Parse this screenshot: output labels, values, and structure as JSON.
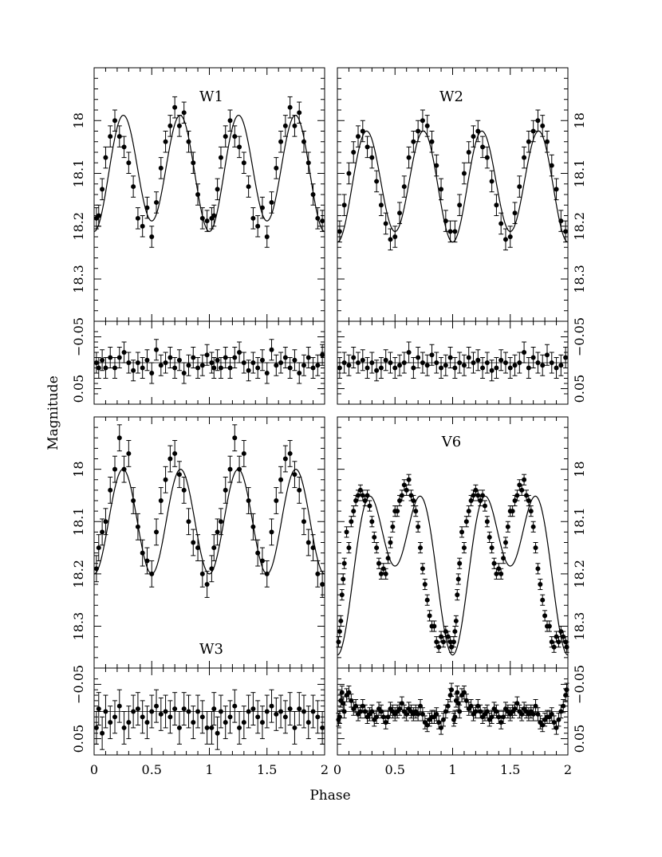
{
  "figure": {
    "xlabel": "Phase",
    "ylabel": "Magnitude",
    "x_ticks": [
      "0",
      "0.5",
      "1",
      "1.5",
      "2"
    ],
    "x_tick_values": [
      0,
      0.5,
      1,
      1.5,
      2
    ],
    "mag_ticks": [
      "18",
      "18.1",
      "18.2",
      "18.3"
    ],
    "mag_tick_values": [
      18.0,
      18.1,
      18.2,
      18.3
    ],
    "resid_ticks": [
      "−0.05",
      "0",
      "0.05"
    ],
    "resid_tick_values": [
      -0.05,
      0,
      0.05
    ],
    "resid_tick_labels_shown": [
      "−0.05",
      "0.05"
    ]
  },
  "chart_data": [
    {
      "type": "scatter",
      "label": "W1",
      "xlim": [
        0,
        2
      ],
      "ylim": [
        18.38,
        17.9
      ],
      "resid_ylim": [
        0.08,
        -0.08
      ],
      "curve": {
        "mean": 18.095,
        "half_amplitude": 0.105,
        "depth_diff": 0.01,
        "model": "double-wave"
      },
      "phase": [
        0.02,
        0.04,
        0.07,
        0.1,
        0.14,
        0.18,
        0.22,
        0.26,
        0.3,
        0.34,
        0.38,
        0.42,
        0.46,
        0.5,
        0.54,
        0.58,
        0.62,
        0.66,
        0.7,
        0.74,
        0.78,
        0.82,
        0.86,
        0.9,
        0.94,
        0.98
      ],
      "mag": [
        18.185,
        18.18,
        18.13,
        18.07,
        18.03,
        18.0,
        18.03,
        18.05,
        18.08,
        18.125,
        18.185,
        18.2,
        18.165,
        18.22,
        18.155,
        18.09,
        18.04,
        18.01,
        17.975,
        18.01,
        17.985,
        18.04,
        18.08,
        18.14,
        18.185,
        18.19
      ],
      "mag_err": 0.02,
      "resid": [
        0.0,
        0.01,
        -0.005,
        0.01,
        -0.01,
        0.01,
        -0.01,
        -0.02,
        0.0,
        0.015,
        0.0,
        0.01,
        -0.005,
        0.02,
        -0.025,
        0.005,
        0.0,
        -0.01,
        0.01,
        -0.005,
        0.02,
        0.005,
        -0.01,
        0.01,
        0.005,
        -0.015
      ],
      "resid_err": 0.02
    },
    {
      "type": "scatter",
      "label": "W2",
      "xlim": [
        0,
        2
      ],
      "ylim": [
        18.38,
        17.9
      ],
      "resid_ylim": [
        0.08,
        -0.08
      ],
      "curve": {
        "mean": 18.12,
        "half_amplitude": 0.1,
        "depth_diff": 0.01,
        "model": "double-wave"
      },
      "phase": [
        0.02,
        0.06,
        0.1,
        0.14,
        0.18,
        0.22,
        0.26,
        0.3,
        0.34,
        0.38,
        0.42,
        0.46,
        0.5,
        0.54,
        0.58,
        0.62,
        0.66,
        0.7,
        0.74,
        0.78,
        0.82,
        0.86,
        0.9,
        0.94,
        0.98
      ],
      "mag": [
        18.21,
        18.16,
        18.1,
        18.06,
        18.03,
        18.02,
        18.05,
        18.07,
        18.115,
        18.16,
        18.195,
        18.225,
        18.22,
        18.175,
        18.125,
        18.07,
        18.04,
        18.02,
        18.0,
        18.01,
        18.04,
        18.085,
        18.13,
        18.19,
        18.21
      ],
      "mag_err": 0.02,
      "resid": [
        0.01,
        0.0,
        0.005,
        -0.01,
        0.0,
        -0.005,
        0.01,
        0.0,
        0.015,
        0.01,
        -0.005,
        0.0,
        0.01,
        0.005,
        0.0,
        -0.02,
        0.01,
        -0.01,
        0.0,
        0.005,
        -0.015,
        0.0,
        0.01,
        0.005,
        -0.01
      ],
      "resid_err": 0.02
    },
    {
      "type": "scatter",
      "label": "W3",
      "xlim": [
        0,
        2
      ],
      "ylim": [
        18.38,
        17.9
      ],
      "resid_ylim": [
        0.08,
        -0.08
      ],
      "curve": {
        "mean": 18.1,
        "half_amplitude": 0.1,
        "depth_diff": 0.0,
        "model": "double-wave"
      },
      "phase": [
        0.02,
        0.04,
        0.07,
        0.1,
        0.14,
        0.18,
        0.22,
        0.26,
        0.3,
        0.34,
        0.38,
        0.42,
        0.46,
        0.5,
        0.54,
        0.58,
        0.62,
        0.66,
        0.7,
        0.74,
        0.78,
        0.82,
        0.86,
        0.9,
        0.94,
        0.98
      ],
      "mag": [
        18.19,
        18.15,
        18.12,
        18.1,
        18.04,
        18.0,
        17.94,
        18.0,
        17.97,
        18.06,
        18.11,
        18.16,
        18.175,
        18.2,
        18.12,
        18.06,
        18.02,
        17.98,
        17.97,
        18.01,
        18.04,
        18.1,
        18.14,
        18.15,
        18.2,
        18.22
      ],
      "mag_err": 0.025,
      "resid": [
        0.03,
        -0.005,
        0.04,
        0.0,
        0.02,
        0.01,
        -0.01,
        0.03,
        0.02,
        0.0,
        -0.005,
        0.01,
        0.02,
        0.0,
        -0.01,
        0.005,
        0.0,
        0.01,
        -0.005,
        0.03,
        -0.005,
        0.0,
        0.02,
        0.0,
        0.01,
        0.03
      ],
      "resid_err": 0.03
    },
    {
      "type": "scatter",
      "label": "V6",
      "xlim": [
        0,
        2
      ],
      "ylim": [
        18.38,
        17.9
      ],
      "resid_ylim": [
        0.08,
        -0.08
      ],
      "curve": {
        "mean": 18.165,
        "half_amplitude": 0.105,
        "depth_diff": 0.085,
        "model": "double-wave"
      },
      "phase": [
        0.01,
        0.02,
        0.03,
        0.04,
        0.05,
        0.06,
        0.08,
        0.1,
        0.12,
        0.14,
        0.16,
        0.18,
        0.2,
        0.22,
        0.24,
        0.26,
        0.28,
        0.3,
        0.32,
        0.34,
        0.36,
        0.38,
        0.4,
        0.42,
        0.44,
        0.46,
        0.48,
        0.5,
        0.52,
        0.54,
        0.56,
        0.58,
        0.6,
        0.62,
        0.64,
        0.66,
        0.68,
        0.7,
        0.72,
        0.74,
        0.76,
        0.78,
        0.8,
        0.82,
        0.84,
        0.86,
        0.88,
        0.9,
        0.92,
        0.94,
        0.96,
        0.98,
        0.99
      ],
      "mag": [
        18.33,
        18.31,
        18.29,
        18.24,
        18.21,
        18.18,
        18.12,
        18.15,
        18.1,
        18.08,
        18.06,
        18.05,
        18.04,
        18.05,
        18.06,
        18.05,
        18.07,
        18.1,
        18.13,
        18.15,
        18.18,
        18.2,
        18.19,
        18.2,
        18.17,
        18.14,
        18.11,
        18.08,
        18.08,
        18.06,
        18.05,
        18.03,
        18.04,
        18.02,
        18.05,
        18.06,
        18.08,
        18.11,
        18.15,
        18.19,
        18.22,
        18.25,
        18.28,
        18.3,
        18.3,
        18.33,
        18.34,
        18.32,
        18.33,
        18.31,
        18.32,
        18.33,
        18.34
      ],
      "mag_err": 0.01,
      "resid": [
        0.015,
        0.01,
        -0.02,
        -0.035,
        -0.015,
        0.0,
        -0.03,
        -0.035,
        -0.02,
        -0.005,
        -0.01,
        0.005,
        0.0,
        -0.01,
        0.0,
        0.01,
        0.005,
        0.0,
        0.015,
        0.01,
        -0.005,
        0.0,
        0.01,
        0.02,
        0.01,
        -0.005,
        0.0,
        0.005,
        0.0,
        -0.005,
        -0.015,
        0.0,
        0.005,
        -0.005,
        0.0,
        0.005,
        0.0,
        0.005,
        -0.01,
        0.005,
        0.02,
        0.025,
        0.015,
        0.01,
        0.01,
        0.005,
        0.02,
        0.03,
        0.015,
        0.0,
        -0.01,
        -0.03,
        -0.04
      ],
      "resid_err": 0.012
    }
  ]
}
